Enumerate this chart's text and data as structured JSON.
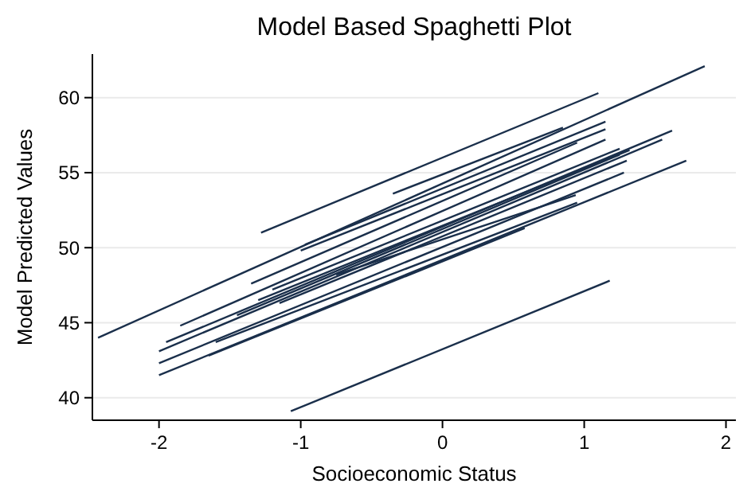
{
  "chart_data": {
    "type": "line",
    "title": "Model Based Spaghetti Plot",
    "xlabel": "Socioeconomic Status",
    "ylabel": "Model Predicted Values",
    "xlim": [
      -2.47,
      2.07
    ],
    "xticks": [
      -2,
      -1,
      0,
      1,
      2
    ],
    "ylim": [
      38.5,
      62.9
    ],
    "yticks": [
      40,
      45,
      50,
      55,
      60
    ],
    "grid": "y",
    "marker": "none",
    "line_style": "solid",
    "series": [
      {
        "color": "#1a2f4b",
        "x": [
          -2.43,
          1.85
        ],
        "values": [
          44.0,
          62.1
        ]
      },
      {
        "color": "#1a2f4b",
        "x": [
          -1.28,
          1.1
        ],
        "values": [
          51.0,
          60.3
        ]
      },
      {
        "color": "#1a2f4b",
        "x": [
          -1.07,
          1.18
        ],
        "values": [
          39.1,
          47.8
        ]
      },
      {
        "color": "#1a2f4b",
        "x": [
          -2.0,
          1.72
        ],
        "values": [
          41.5,
          55.8
        ]
      },
      {
        "color": "#1a2f4b",
        "x": [
          -2.0,
          1.28
        ],
        "values": [
          42.3,
          55.0
        ]
      },
      {
        "color": "#1a2f4b",
        "x": [
          -2.0,
          1.55
        ],
        "values": [
          43.1,
          57.2
        ]
      },
      {
        "color": "#1a2f4b",
        "x": [
          -1.85,
          1.15
        ],
        "values": [
          44.8,
          57.2
        ]
      },
      {
        "color": "#1a2f4b",
        "x": [
          -1.95,
          1.62
        ],
        "values": [
          43.7,
          57.8
        ]
      },
      {
        "color": "#1a2f4b",
        "x": [
          -0.97,
          1.15
        ],
        "values": [
          50.2,
          58.4
        ]
      },
      {
        "color": "#1a2f4b",
        "x": [
          -1.0,
          1.15
        ],
        "values": [
          49.8,
          57.9
        ]
      },
      {
        "color": "#1a2f4b",
        "x": [
          -1.35,
          0.95
        ],
        "values": [
          47.6,
          57.0
        ]
      },
      {
        "color": "#1a2f4b",
        "x": [
          -1.6,
          0.95
        ],
        "values": [
          43.7,
          53.0
        ]
      },
      {
        "color": "#1a2f4b",
        "x": [
          -1.65,
          0.58
        ],
        "values": [
          42.8,
          51.3
        ]
      },
      {
        "color": "#1a2f4b",
        "x": [
          -0.35,
          0.85
        ],
        "values": [
          53.6,
          58.0
        ]
      },
      {
        "color": "#1a2f4b",
        "x": [
          -1.2,
          1.25
        ],
        "values": [
          47.2,
          56.6
        ]
      },
      {
        "color": "#1a2f4b",
        "x": [
          -1.3,
          1.32
        ],
        "values": [
          46.5,
          56.5
        ]
      },
      {
        "color": "#1a2f4b",
        "x": [
          -1.15,
          1.3
        ],
        "values": [
          46.3,
          55.8
        ]
      },
      {
        "color": "#1a2f4b",
        "x": [
          -0.75,
          0.94
        ],
        "values": [
          48.2,
          53.5
        ]
      },
      {
        "color": "#1a2f4b",
        "x": [
          -1.45,
          1.25
        ],
        "values": [
          45.5,
          56.2
        ]
      }
    ]
  }
}
